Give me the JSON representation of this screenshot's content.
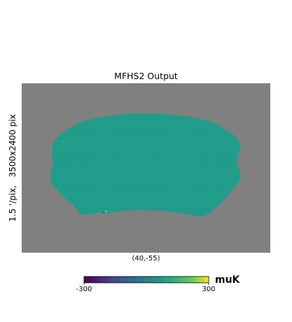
{
  "chart_data": {
    "type": "heatmap",
    "title": "MFHS2 Output",
    "ylabel": "1.5 '/pix,   3500x2400 pix",
    "center_label": "(40,-55)",
    "colorbar": {
      "colormap": "viridis",
      "min": -300,
      "max": 300,
      "min_label": "-300",
      "max_label": "300",
      "unit": "muK",
      "orientation": "horizontal"
    },
    "projection": "cartesian",
    "colors": {
      "background": "#808080",
      "footprint": "#219c8b",
      "speckle": "#2aa58f"
    },
    "description_values": {
      "typical_pixel_value_muK": 0
    }
  }
}
